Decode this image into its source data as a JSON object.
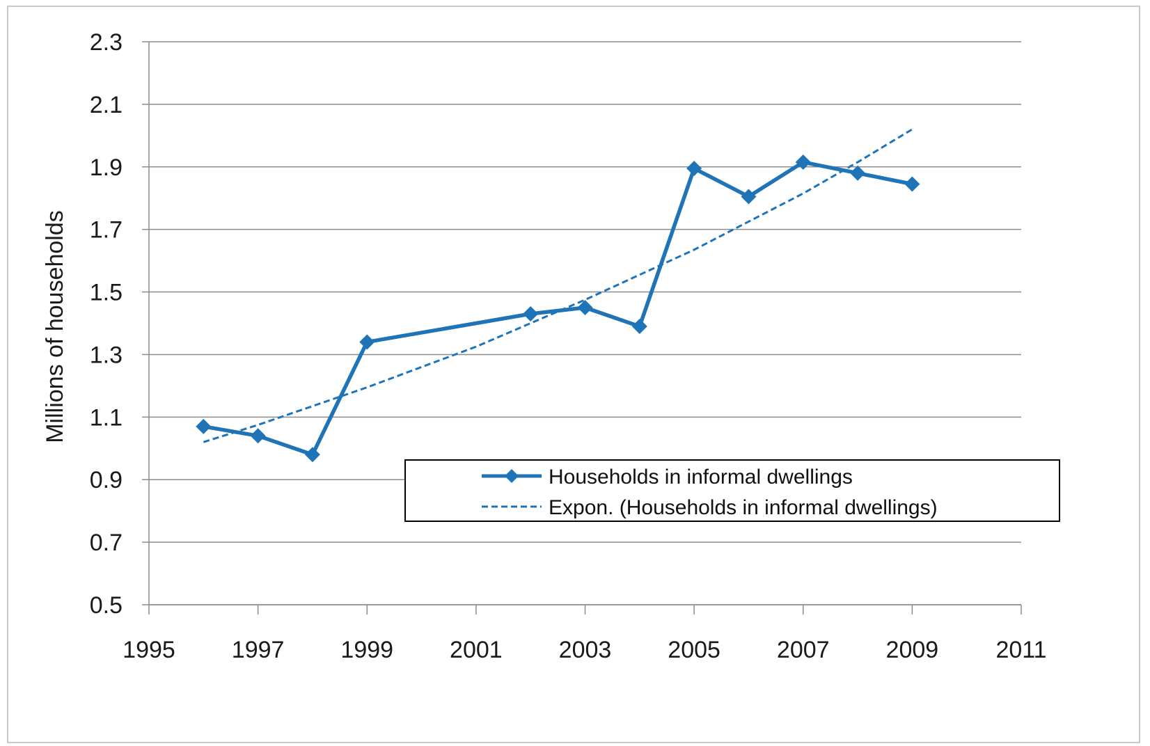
{
  "chart_data": {
    "type": "line",
    "title": "",
    "xlabel": "",
    "ylabel": "Millions of households",
    "xlim": [
      1995,
      2011
    ],
    "ylim": [
      0.5,
      2.3
    ],
    "x_ticks": [
      1995,
      1997,
      1999,
      2001,
      2003,
      2005,
      2007,
      2009,
      2011
    ],
    "y_ticks": [
      "0.5",
      "0.7",
      "0.9",
      "1.1",
      "1.3",
      "1.5",
      "1.7",
      "1.9",
      "2.1",
      "2.3"
    ],
    "grid": "horizontal major gridlines",
    "legend_position": "lower-right, inside plot",
    "series": [
      {
        "name": "Households in informal dwellings",
        "style": "solid line with diamond markers",
        "color": "#1f74b8",
        "x": [
          1996,
          1997,
          1998,
          1999,
          2002,
          2003,
          2004,
          2005,
          2006,
          2007,
          2008,
          2009
        ],
        "values": [
          1.07,
          1.04,
          0.98,
          1.34,
          1.43,
          1.45,
          1.39,
          1.895,
          1.805,
          1.915,
          1.88,
          1.845
        ]
      },
      {
        "name": "Expon. (Households in informal dwellings)",
        "style": "dashed trendline",
        "color": "#1f74b8",
        "x": [
          1996,
          1997,
          1998,
          1999,
          2000,
          2001,
          2002,
          2003,
          2004,
          2005,
          2006,
          2007,
          2008,
          2009
        ],
        "values": [
          1.02,
          1.075,
          1.135,
          1.195,
          1.26,
          1.325,
          1.4,
          1.475,
          1.555,
          1.635,
          1.725,
          1.815,
          1.915,
          2.02
        ]
      }
    ]
  }
}
